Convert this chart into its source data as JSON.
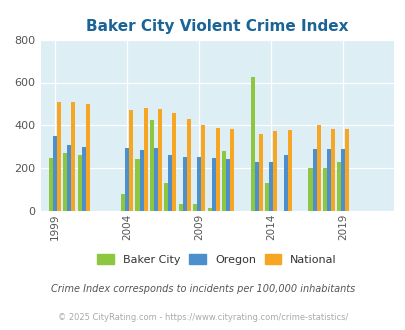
{
  "title": "Baker City Violent Crime Index",
  "subtitle": "Crime Index corresponds to incidents per 100,000 inhabitants",
  "copyright": "© 2025 CityRating.com - https://www.cityrating.com/crime-statistics/",
  "ylim": [
    0,
    800
  ],
  "yticks": [
    0,
    200,
    400,
    600,
    800
  ],
  "background_color": "#ddeef5",
  "fig_background": "#ffffff",
  "title_color": "#1a6496",
  "subtitle_color": "#555555",
  "copyright_color": "#aaaaaa",
  "bar_colors": {
    "baker_city": "#8dc63f",
    "oregon": "#4d8fcc",
    "national": "#f6a623"
  },
  "years": [
    1999,
    2000,
    2001,
    2004,
    2005,
    2006,
    2007,
    2008,
    2009,
    2010,
    2011,
    2013,
    2014,
    2015,
    2017,
    2018,
    2019,
    2020,
    2021
  ],
  "baker_city": [
    250,
    270,
    260,
    80,
    245,
    425,
    130,
    35,
    35,
    15,
    280,
    625,
    130,
    0,
    200,
    200,
    230,
    0,
    0
  ],
  "oregon": [
    350,
    310,
    300,
    295,
    285,
    295,
    260,
    255,
    255,
    250,
    245,
    230,
    230,
    260,
    290,
    290,
    290,
    0,
    0
  ],
  "national": [
    510,
    510,
    500,
    470,
    480,
    475,
    460,
    430,
    400,
    390,
    385,
    360,
    375,
    380,
    400,
    385,
    385,
    0,
    0
  ],
  "tick_years": [
    1999,
    2004,
    2009,
    2014,
    2019
  ],
  "legend_labels": [
    "Baker City",
    "Oregon",
    "National"
  ],
  "xlim": [
    1998.0,
    2022.5
  ]
}
